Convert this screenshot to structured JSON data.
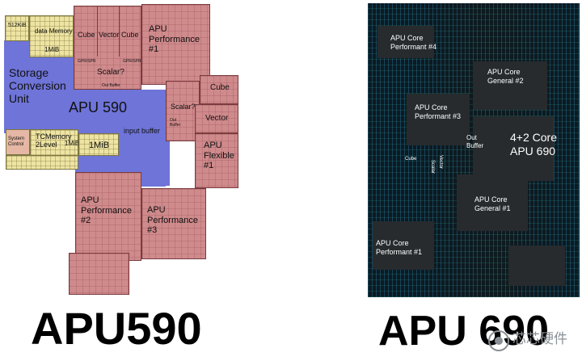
{
  "apu590": {
    "size_512kib": "512KiB",
    "data_memory": "data Memory",
    "data_memory_size": "1MiB",
    "storage_conversion_unit": "Storage\nConversion\nUnit",
    "system_control": "System\nControl",
    "tc_memory": "TCMemory\n2Level",
    "tc_memory_size": "1MiB",
    "memory_1mib": "1MiB",
    "cube_a": "Cube",
    "vector_a": "Vector",
    "cube_b": "Cube",
    "gpr_a": "GPR/SPR",
    "gpr_b": "GPR/SPR",
    "scalar_a": "Scalar?",
    "out_buffer_a": "Out Buffer",
    "perf1": "APU\nPerformance\n#1",
    "chip_label": "APU 590",
    "input_buffer": "input buffer",
    "scalar_b": "Scalar?",
    "out_buffer_b": "Out\nBuffer",
    "cube_c": "Cube",
    "vector_c": "Vector",
    "flexible1": "APU\nFlexible\n#1",
    "perf2": "APU\nPerformance\n#2",
    "perf3": "APU\nPerformance\n#3"
  },
  "apu690": {
    "core_perf4": "APU Core\nPerformant #4",
    "core_general2": "APU Core\nGeneral #2",
    "core_perf3": "APU Core\nPerformant #3",
    "chip_label": "4+2 Core\nAPU 690",
    "out_buffer": "Out\nBuffer",
    "cube": "Cube",
    "scalar": "Scalar",
    "vector": "Vector",
    "core_general1": "APU Core\nGeneral #1",
    "core_perf1": "APU Core\nPerformant #1"
  },
  "titles": {
    "left": "APU590",
    "right": "APU 690"
  },
  "watermark": "芯芯硬件"
}
